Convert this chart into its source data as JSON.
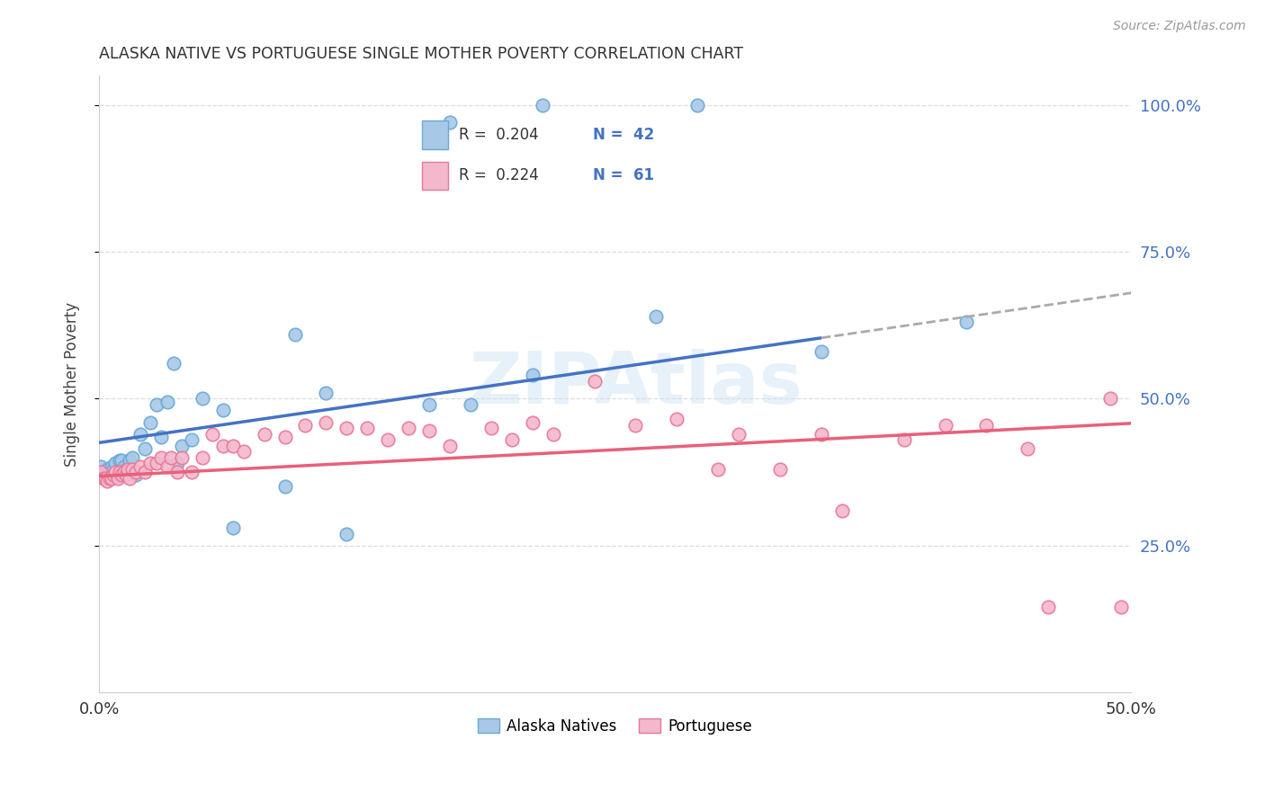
{
  "title": "ALASKA NATIVE VS PORTUGUESE SINGLE MOTHER POVERTY CORRELATION CHART",
  "source": "Source: ZipAtlas.com",
  "ylabel": "Single Mother Poverty",
  "watermark": "ZIPAtlas",
  "xlim": [
    0.0,
    0.5
  ],
  "ylim": [
    0.0,
    1.05
  ],
  "xtick_vals": [
    0.0,
    0.05,
    0.1,
    0.15,
    0.2,
    0.25,
    0.3,
    0.35,
    0.4,
    0.45,
    0.5
  ],
  "xticklabels": [
    "0.0%",
    "",
    "",
    "",
    "",
    "",
    "",
    "",
    "",
    "",
    "50.0%"
  ],
  "ytick_positions": [
    0.25,
    0.5,
    0.75,
    1.0
  ],
  "yticklabels": [
    "25.0%",
    "50.0%",
    "75.0%",
    "100.0%"
  ],
  "color_blue": "#A8C8E8",
  "color_blue_edge": "#6AAAD4",
  "color_pink": "#F4B8CC",
  "color_pink_edge": "#E87898",
  "color_blue_line": "#4472C4",
  "color_pink_line": "#E8607A",
  "color_blue_text": "#4472C4",
  "color_dashed_line": "#AAAAAA",
  "color_grid": "#DDDDDD",
  "alaska_x": [
    0.001,
    0.002,
    0.003,
    0.004,
    0.005,
    0.006,
    0.007,
    0.008,
    0.009,
    0.01,
    0.011,
    0.012,
    0.013,
    0.015,
    0.016,
    0.018,
    0.02,
    0.022,
    0.025,
    0.028,
    0.03,
    0.033,
    0.036,
    0.038,
    0.04,
    0.045,
    0.05,
    0.06,
    0.065,
    0.09,
    0.095,
    0.11,
    0.12,
    0.16,
    0.17,
    0.18,
    0.21,
    0.215,
    0.27,
    0.29,
    0.35,
    0.42
  ],
  "alaska_y": [
    0.385,
    0.37,
    0.375,
    0.38,
    0.375,
    0.385,
    0.38,
    0.39,
    0.37,
    0.395,
    0.395,
    0.385,
    0.38,
    0.395,
    0.4,
    0.37,
    0.44,
    0.415,
    0.46,
    0.49,
    0.435,
    0.495,
    0.56,
    0.39,
    0.42,
    0.43,
    0.5,
    0.48,
    0.28,
    0.35,
    0.61,
    0.51,
    0.27,
    0.49,
    0.97,
    0.49,
    0.54,
    1.0,
    0.64,
    1.0,
    0.58,
    0.63
  ],
  "portuguese_x": [
    0.001,
    0.002,
    0.003,
    0.004,
    0.005,
    0.006,
    0.007,
    0.008,
    0.009,
    0.01,
    0.011,
    0.012,
    0.013,
    0.014,
    0.015,
    0.016,
    0.018,
    0.02,
    0.022,
    0.025,
    0.028,
    0.03,
    0.033,
    0.035,
    0.038,
    0.04,
    0.045,
    0.05,
    0.055,
    0.06,
    0.065,
    0.07,
    0.08,
    0.09,
    0.1,
    0.11,
    0.12,
    0.13,
    0.14,
    0.15,
    0.16,
    0.17,
    0.19,
    0.2,
    0.21,
    0.22,
    0.24,
    0.26,
    0.28,
    0.3,
    0.31,
    0.33,
    0.35,
    0.36,
    0.39,
    0.41,
    0.43,
    0.45,
    0.46,
    0.49,
    0.495
  ],
  "portuguese_y": [
    0.375,
    0.365,
    0.365,
    0.36,
    0.365,
    0.365,
    0.37,
    0.375,
    0.365,
    0.375,
    0.37,
    0.375,
    0.37,
    0.38,
    0.365,
    0.38,
    0.375,
    0.385,
    0.375,
    0.39,
    0.39,
    0.4,
    0.385,
    0.4,
    0.375,
    0.4,
    0.375,
    0.4,
    0.44,
    0.42,
    0.42,
    0.41,
    0.44,
    0.435,
    0.455,
    0.46,
    0.45,
    0.45,
    0.43,
    0.45,
    0.445,
    0.42,
    0.45,
    0.43,
    0.46,
    0.44,
    0.53,
    0.455,
    0.465,
    0.38,
    0.44,
    0.38,
    0.44,
    0.31,
    0.43,
    0.455,
    0.455,
    0.415,
    0.145,
    0.5,
    0.145
  ]
}
